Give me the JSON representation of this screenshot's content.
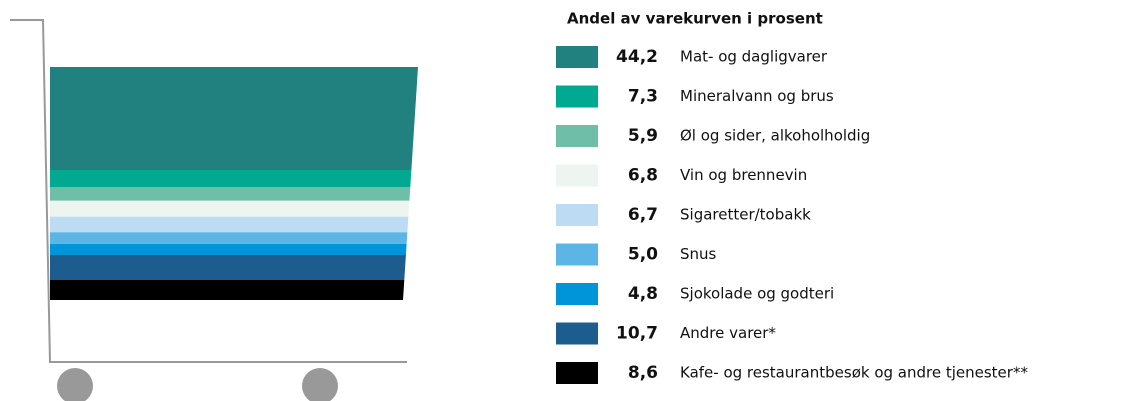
{
  "chart_data": {
    "type": "bar",
    "title": "Andel av varekurven i prosent",
    "categories": [
      "Mat- og dagligvarer",
      "Mineralvann og brus",
      "Øl og sider, alkoholholdig",
      "Vin og brennevin",
      "Sigaretter/tobakk",
      "Snus",
      "Sjokolade og godteri",
      "Andre varer*",
      "Kafe- og restaurantbesøk og andre tjenester**"
    ],
    "values": [
      44.2,
      7.3,
      5.9,
      6.8,
      6.7,
      5.0,
      4.8,
      10.7,
      8.6
    ],
    "value_labels": [
      "44,2",
      "7,3",
      "5,9",
      "6,8",
      "6,7",
      "5,0",
      "4,8",
      "10,7",
      "8,6"
    ],
    "colors": [
      "#20817f",
      "#00a98f",
      "#6fbfa8",
      "#eef5f1",
      "#bddcf4",
      "#5db5e5",
      "#0095d9",
      "#1d5c8e",
      "#000000"
    ],
    "stacked": true
  }
}
